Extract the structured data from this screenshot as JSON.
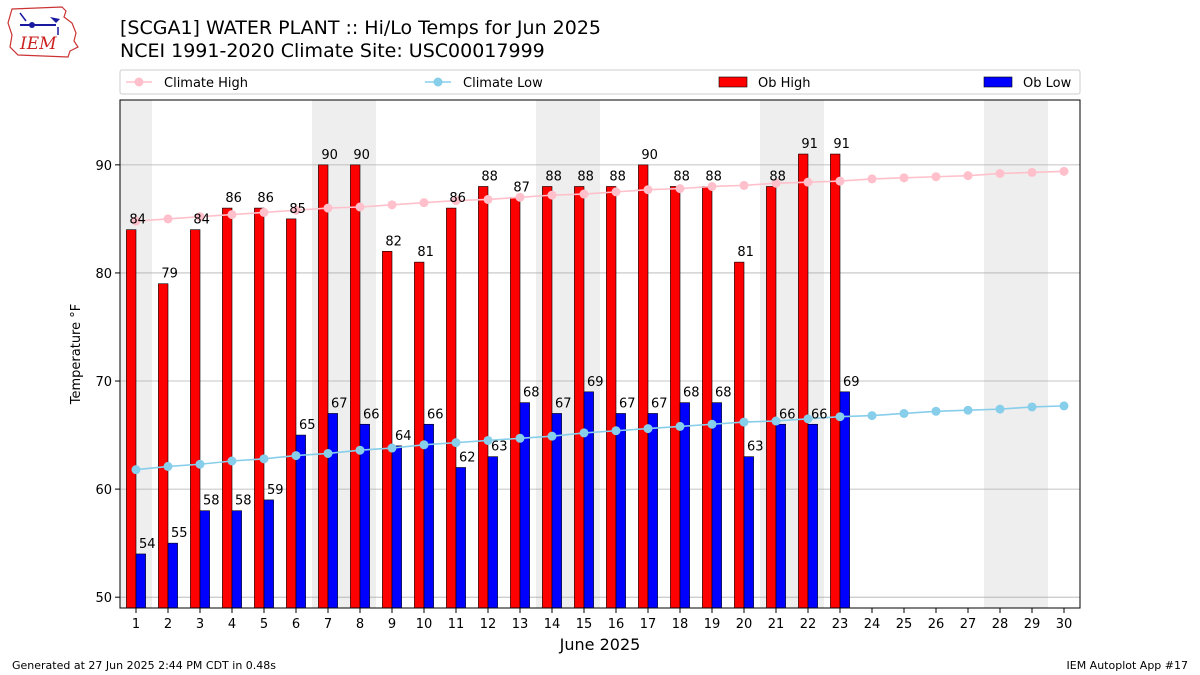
{
  "header": {
    "title_line1": "[SCGA1] WATER PLANT :: Hi/Lo Temps for Jun 2025",
    "title_line2": "NCEI 1991-2020 Climate Site: USC00017999"
  },
  "logo": {
    "text": "IEM"
  },
  "footer": {
    "generated": "Generated at 27 Jun 2025 2:44 PM CDT in 0.48s",
    "app": "IEM Autoplot App #17"
  },
  "colors": {
    "ob_high": "#ff0000",
    "ob_low": "#0000ff",
    "climate_high": "#ffc0cb",
    "climate_low": "#87ceeb",
    "weekend_shade": "#eeeeee",
    "grid": "#b0b0b0"
  },
  "chart_data": {
    "type": "bar",
    "xlabel": "June 2025",
    "ylabel": "Temperature °F",
    "xlim": [
      0.5,
      30.5
    ],
    "ylim": [
      49,
      96
    ],
    "yticks": [
      50,
      60,
      70,
      80,
      90
    ],
    "grid": "y",
    "legend_placement": "top",
    "legend": [
      "Climate High",
      "Climate Low",
      "Ob High",
      "Ob Low"
    ],
    "shaded_weekend_days": [
      1,
      7,
      8,
      14,
      15,
      21,
      22,
      28,
      29
    ],
    "days": [
      1,
      2,
      3,
      4,
      5,
      6,
      7,
      8,
      9,
      10,
      11,
      12,
      13,
      14,
      15,
      16,
      17,
      18,
      19,
      20,
      21,
      22,
      23,
      24,
      25,
      26,
      27,
      28,
      29,
      30
    ],
    "series": [
      {
        "name": "Ob High",
        "kind": "bar",
        "values": [
          84,
          79,
          84,
          86,
          86,
          85,
          90,
          90,
          82,
          81,
          86,
          88,
          87,
          88,
          88,
          88,
          90,
          88,
          88,
          81,
          88,
          91,
          91
        ]
      },
      {
        "name": "Ob Low",
        "kind": "bar",
        "values": [
          54,
          55,
          58,
          58,
          59,
          65,
          67,
          66,
          64,
          66,
          62,
          63,
          68,
          67,
          69,
          67,
          67,
          68,
          68,
          63,
          66,
          66,
          69
        ]
      },
      {
        "name": "Climate High",
        "kind": "line",
        "values": [
          84.8,
          85.0,
          85.2,
          85.4,
          85.6,
          85.8,
          86.0,
          86.1,
          86.3,
          86.5,
          86.7,
          86.8,
          87.0,
          87.2,
          87.3,
          87.5,
          87.7,
          87.8,
          88.0,
          88.1,
          88.3,
          88.4,
          88.5,
          88.7,
          88.8,
          88.9,
          89.0,
          89.2,
          89.3,
          89.4
        ]
      },
      {
        "name": "Climate Low",
        "kind": "line",
        "values": [
          61.8,
          62.1,
          62.3,
          62.6,
          62.8,
          63.1,
          63.3,
          63.6,
          63.8,
          64.1,
          64.3,
          64.5,
          64.7,
          64.9,
          65.2,
          65.4,
          65.6,
          65.8,
          66.0,
          66.2,
          66.3,
          66.5,
          66.7,
          66.8,
          67.0,
          67.2,
          67.3,
          67.4,
          67.6,
          67.7
        ]
      }
    ]
  }
}
